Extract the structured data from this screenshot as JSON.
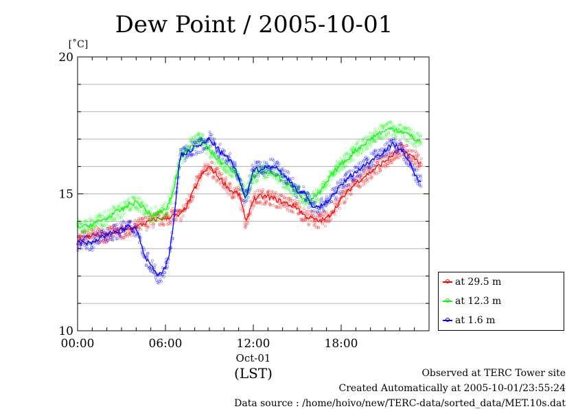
{
  "chart_data": {
    "type": "line",
    "title": "Dew Point / 2005-10-01",
    "ylabel": "[˚C]",
    "xlabel": "(LST)",
    "ylim": [
      10,
      20
    ],
    "yticks": [
      10,
      15,
      20
    ],
    "xlim": [
      0,
      24
    ],
    "xticks": [
      {
        "x": 0,
        "label": "00:00"
      },
      {
        "x": 6,
        "label": "06:00"
      },
      {
        "x": 12,
        "label": "12:00"
      },
      {
        "x": 18,
        "label": "18:00"
      }
    ],
    "date_label": "Oct-01",
    "grid": true,
    "legend_position": "bottom-right-outside",
    "series": [
      {
        "name": "at 29.5 m",
        "color": "#ff0000",
        "x": [
          0,
          0.5,
          1,
          1.5,
          2,
          2.5,
          3,
          3.5,
          4,
          4.5,
          5,
          5.5,
          6,
          6.5,
          7,
          7.5,
          8,
          8.5,
          9,
          9.5,
          10,
          10.5,
          11,
          11.25,
          11.5,
          11.75,
          12,
          12.5,
          13,
          13.5,
          14,
          14.5,
          15,
          15.5,
          16,
          16.5,
          17,
          17.5,
          18,
          18.5,
          19,
          19.5,
          20,
          20.5,
          21,
          21.5,
          22,
          22.5,
          23,
          23.5
        ],
        "y": [
          13.3,
          13.4,
          13.5,
          13.5,
          13.5,
          13.6,
          13.6,
          13.7,
          13.8,
          13.9,
          14.0,
          14.1,
          14.1,
          14.2,
          14.2,
          14.6,
          15.2,
          15.7,
          16.0,
          15.7,
          15.4,
          15.1,
          15.0,
          14.6,
          13.9,
          14.4,
          14.8,
          14.9,
          14.9,
          14.8,
          14.7,
          14.6,
          14.5,
          14.2,
          14.1,
          14.0,
          14.1,
          14.4,
          14.8,
          15.1,
          15.4,
          15.6,
          15.8,
          16.0,
          16.2,
          16.4,
          16.6,
          16.5,
          16.3,
          16.1
        ]
      },
      {
        "name": "at 12.3 m",
        "color": "#00ff00",
        "x": [
          0,
          0.5,
          1,
          1.5,
          2,
          2.5,
          3,
          3.5,
          4,
          4.5,
          5,
          5.5,
          6,
          6.5,
          7,
          7.5,
          8,
          8.5,
          9,
          9.5,
          10,
          10.5,
          11,
          11.25,
          11.5,
          11.75,
          12,
          12.5,
          13,
          13.5,
          14,
          14.5,
          15,
          15.5,
          16,
          16.5,
          17,
          17.5,
          18,
          18.5,
          19,
          19.5,
          20,
          20.5,
          21,
          21.5,
          22,
          22.5,
          23,
          23.5
        ],
        "y": [
          13.8,
          13.8,
          13.9,
          14.0,
          14.1,
          14.3,
          14.4,
          14.6,
          14.7,
          14.5,
          14.2,
          14.3,
          14.4,
          15.0,
          16.3,
          16.6,
          16.9,
          17.0,
          16.6,
          16.3,
          16.1,
          15.9,
          15.6,
          15.2,
          14.9,
          15.3,
          15.6,
          15.8,
          15.8,
          15.7,
          15.5,
          15.3,
          15.1,
          14.8,
          14.8,
          15.0,
          15.4,
          15.8,
          16.1,
          16.3,
          16.6,
          16.8,
          17.0,
          17.2,
          17.3,
          17.4,
          17.3,
          17.2,
          17.0,
          16.9
        ]
      },
      {
        "name": "at 1.6 m",
        "color": "#0000ff",
        "x": [
          0,
          0.5,
          1,
          1.5,
          2,
          2.5,
          3,
          3.5,
          4,
          4.25,
          4.5,
          4.75,
          5,
          5.25,
          5.5,
          5.75,
          6,
          6.25,
          6.5,
          6.75,
          7,
          7.5,
          8,
          8.5,
          9,
          9.5,
          10,
          10.5,
          11,
          11.25,
          11.5,
          11.75,
          12,
          12.5,
          13,
          13.5,
          14,
          14.5,
          15,
          15.5,
          16,
          16.5,
          17,
          17.5,
          18,
          18.5,
          19,
          19.5,
          20,
          20.5,
          21,
          21.5,
          22,
          22.5,
          23,
          23.5
        ],
        "y": [
          13.2,
          13.2,
          13.2,
          13.4,
          13.5,
          13.6,
          13.7,
          13.8,
          13.7,
          13.4,
          12.8,
          12.6,
          12.4,
          12.2,
          12.0,
          12.1,
          12.3,
          12.8,
          13.7,
          15.0,
          16.4,
          16.5,
          16.7,
          16.8,
          17.0,
          16.7,
          16.4,
          16.2,
          15.6,
          15.1,
          14.8,
          15.4,
          15.9,
          15.9,
          16.0,
          16.0,
          15.7,
          15.5,
          15.1,
          15.0,
          14.6,
          14.5,
          14.7,
          15.0,
          15.3,
          15.6,
          15.8,
          16.0,
          16.2,
          16.4,
          16.6,
          16.8,
          16.7,
          16.3,
          15.7,
          15.4
        ]
      }
    ]
  },
  "footer": {
    "site": "Observed at TERC Tower site",
    "created": "Created Automatically at 2005-10-01/23:55:24",
    "source": "Data source : /home/hoivo/new/TERC-data/sorted_data/MET.10s.dat"
  }
}
